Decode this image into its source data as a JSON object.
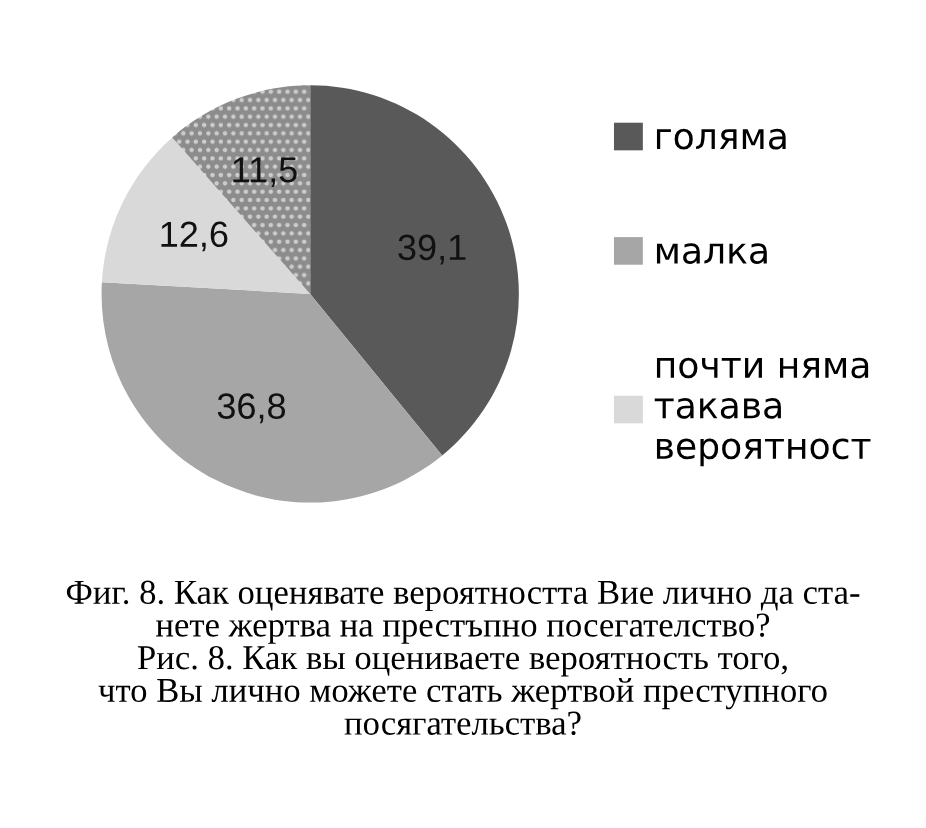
{
  "chart_data": {
    "type": "pie",
    "categories": [
      "голяма",
      "малка",
      "почти няма\nтакава\nвероятност",
      null
    ],
    "values": [
      39.1,
      36.8,
      12.6,
      11.5
    ],
    "colors": [
      "#595959",
      "#a6a6a6",
      "#d9d9d9",
      "#8c8c8c"
    ],
    "value_labels": [
      "39,1",
      "36,8",
      "12,6",
      "11,5"
    ],
    "legend": "right",
    "annotations": [
      "Фиг. 8. Как оценявате вероятността Вие лично да ста-\nнете жертва на престъпно посегателство?\nРис. 8. Как вы оцениваете вероятность того,\nчто Вы лично можете стать жертвой преступного\nпосягательства?"
    ]
  }
}
